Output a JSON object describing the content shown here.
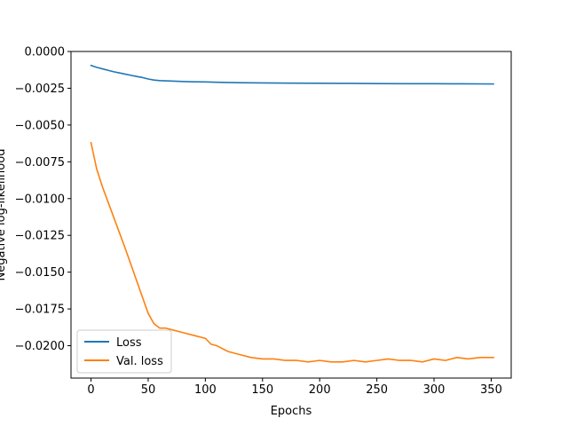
{
  "chart_data": {
    "type": "line",
    "title": "",
    "xlabel": "Epochs",
    "ylabel": "Negative log-likelihood",
    "xlim": [
      -17.5,
      367.5
    ],
    "ylim": [
      -0.0222,
      0.0
    ],
    "xticks": [
      0,
      50,
      100,
      150,
      200,
      250,
      300,
      350
    ],
    "xtick_labels": [
      "0",
      "50",
      "100",
      "150",
      "200",
      "250",
      "300",
      "350"
    ],
    "yticks": [
      0.0,
      -0.0025,
      -0.005,
      -0.0075,
      -0.01,
      -0.0125,
      -0.015,
      -0.0175,
      -0.02
    ],
    "ytick_labels": [
      "0.0000",
      "−0.0025",
      "−0.0050",
      "−0.0075",
      "−0.0100",
      "−0.0125",
      "−0.0150",
      "−0.0175",
      "−0.0200"
    ],
    "grid": false,
    "legend_position": "lower-left",
    "series": [
      {
        "name": "Loss",
        "color": "#1f77b4",
        "x": [
          0,
          5,
          10,
          15,
          20,
          25,
          30,
          35,
          40,
          45,
          50,
          55,
          60,
          70,
          80,
          90,
          100,
          110,
          120,
          130,
          140,
          150,
          175,
          200,
          225,
          250,
          275,
          300,
          325,
          352
        ],
        "y": [
          -0.00095,
          -0.00108,
          -0.00118,
          -0.00128,
          -0.00138,
          -0.00146,
          -0.00154,
          -0.00162,
          -0.0017,
          -0.00177,
          -0.00187,
          -0.00194,
          -0.00198,
          -0.00201,
          -0.00204,
          -0.00206,
          -0.00207,
          -0.00209,
          -0.00211,
          -0.00212,
          -0.00213,
          -0.00214,
          -0.00215,
          -0.00216,
          -0.00217,
          -0.00218,
          -0.00219,
          -0.00219,
          -0.0022,
          -0.00221
        ]
      },
      {
        "name": "Val. loss",
        "color": "#ff7f0e",
        "x": [
          0,
          5,
          10,
          20,
          30,
          40,
          45,
          50,
          55,
          60,
          65,
          70,
          80,
          90,
          100,
          105,
          110,
          120,
          130,
          140,
          150,
          160,
          170,
          180,
          190,
          200,
          210,
          220,
          230,
          240,
          250,
          260,
          270,
          280,
          290,
          300,
          310,
          320,
          330,
          340,
          352
        ],
        "y": [
          -0.0062,
          -0.008,
          -0.0092,
          -0.0113,
          -0.0134,
          -0.0156,
          -0.0167,
          -0.0178,
          -0.0185,
          -0.0188,
          -0.0188,
          -0.0189,
          -0.0191,
          -0.0193,
          -0.0195,
          -0.0199,
          -0.02,
          -0.0204,
          -0.0206,
          -0.0208,
          -0.0209,
          -0.0209,
          -0.021,
          -0.021,
          -0.0211,
          -0.021,
          -0.0211,
          -0.0211,
          -0.021,
          -0.0211,
          -0.021,
          -0.0209,
          -0.021,
          -0.021,
          -0.0211,
          -0.0209,
          -0.021,
          -0.0208,
          -0.0209,
          -0.0208,
          -0.0208
        ]
      }
    ]
  }
}
